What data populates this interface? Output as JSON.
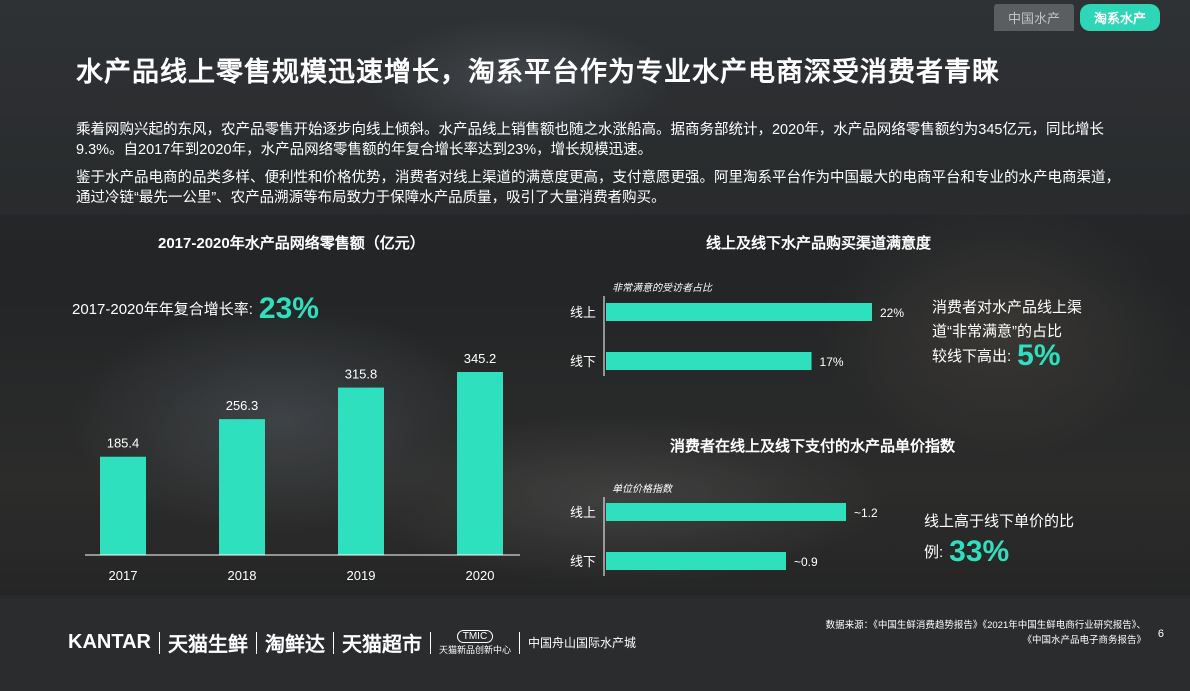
{
  "tabs": [
    "中国水产",
    "淘系水产"
  ],
  "title": "水产品线上零售规模迅速增长，淘系平台作为专业水产电商深受消费者青睐",
  "paragraph1": "乘着网购兴起的东风，农产品零售开始逐步向线上倾斜。水产品线上销售额也随之水涨船高。据商务部统计，2020年，水产品网络零售额约为345亿元，同比增长9.3%。自2017年到2020年，水产品网络零售额的年复合增长率达到23%，增长规模迅速。",
  "paragraph2": "鉴于水产品电商的品类多样、便利性和价格优势，消费者对线上渠道的满意度更高，支付意愿更强。阿里淘系平台作为中国最大的电商平台和专业的水产电商渠道，通过冷链“最先一公里”、农产品溯源等布局致力于保障水产品质量，吸引了大量消费者购买。",
  "cagr": {
    "label": "2017-2020年年复合增长率:",
    "value": "23%"
  },
  "note1": {
    "line1": "消费者对水产品线上渠",
    "line2": "道“非常满意”的占比",
    "line3": "较线下高出:",
    "value": "5%"
  },
  "note2": {
    "line1": "线上高于线下单价的比",
    "line2": "例:",
    "value": "33%"
  },
  "footer": {
    "logos": [
      "KANTAR",
      "天猫生鲜",
      "淘鲜达",
      "天猫超市",
      "TMIC",
      "天猫新品创新中心",
      "中国舟山国际水产城"
    ],
    "source_line1": "数据来源：《中国生鲜消费趋势报告》《2021年中国生鲜电商行业研究报告》、",
    "source_line2": "《中国水产品电子商务报告》",
    "page": "6"
  },
  "colors": {
    "accent": "#2fe0be",
    "text": "#ffffff"
  },
  "chart_data": [
    {
      "type": "bar",
      "title": "2017-2020年水产品网络零售额（亿元）",
      "categories": [
        "2017",
        "2018",
        "2019",
        "2020"
      ],
      "values": [
        185.4,
        256.3,
        315.8,
        345.2
      ],
      "value_labels": [
        "185.4",
        "256.3",
        "315.8",
        "345.2"
      ],
      "ylim": [
        0,
        345.2
      ],
      "grid": false
    },
    {
      "type": "bar",
      "orientation": "horizontal",
      "title": "线上及线下水产品购买渠道满意度",
      "subtitle": "非常满意的受访者占比",
      "categories": [
        "线上",
        "线下"
      ],
      "values": [
        22,
        17
      ],
      "value_labels": [
        "22%",
        "17%"
      ],
      "xlim": [
        0,
        22
      ],
      "grid": false
    },
    {
      "type": "bar",
      "orientation": "horizontal",
      "title": "消费者在线上及线下支付的水产品单价指数",
      "subtitle": "单位价格指数",
      "categories": [
        "线上",
        "线下"
      ],
      "values": [
        1.2,
        0.9
      ],
      "value_labels": [
        "~1.2",
        "~0.9"
      ],
      "xlim": [
        0,
        1.2
      ],
      "grid": false
    }
  ]
}
